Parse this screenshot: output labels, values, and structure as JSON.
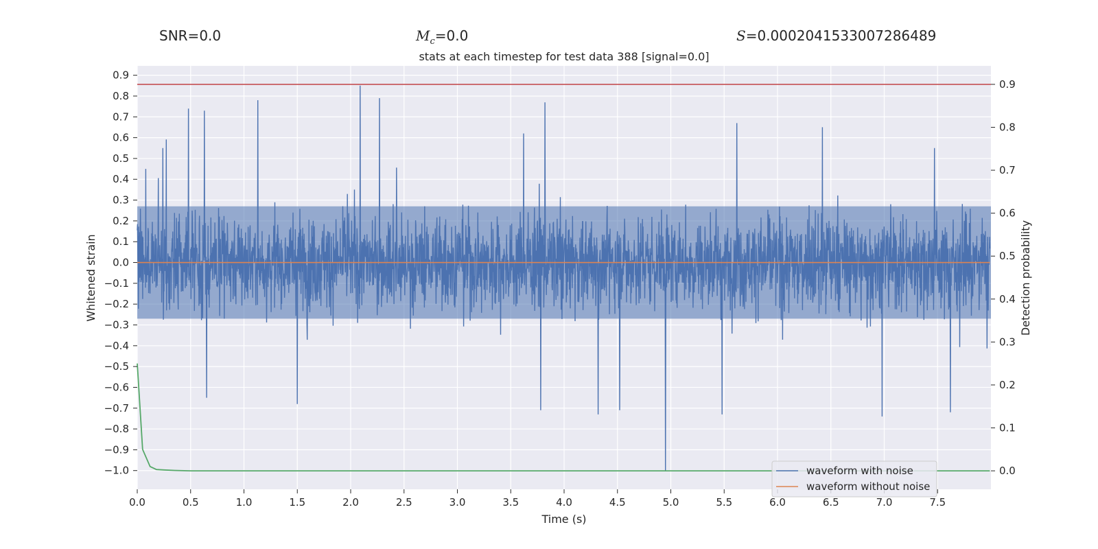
{
  "header": {
    "snr_prefix": "SNR=",
    "snr_value": "0.0",
    "mc_symbol": "M",
    "mc_subscript": "c",
    "mc_equals": "=",
    "mc_value": "0.0",
    "s_symbol": "S",
    "s_equals": "=",
    "s_value": "0.0002041533007286489"
  },
  "chart_data": {
    "type": "line",
    "title": "stats at each timestep for test data 388 [signal=0.0]",
    "xlabel": "Time (s)",
    "ylabel_left": "Whitened strain",
    "ylabel_right": "Detection probability",
    "xlim": [
      0.0,
      8.0
    ],
    "ylim_left": [
      -1.09,
      0.945
    ],
    "ylim_right": [
      -0.043,
      0.943
    ],
    "x_ticks": [
      0.0,
      0.5,
      1.0,
      1.5,
      2.0,
      2.5,
      3.0,
      3.5,
      4.0,
      4.5,
      5.0,
      5.5,
      6.0,
      6.5,
      7.0,
      7.5
    ],
    "x_tick_labels": [
      "0.0",
      "0.5",
      "1.0",
      "1.5",
      "2.0",
      "2.5",
      "3.0",
      "3.5",
      "4.0",
      "4.5",
      "5.0",
      "5.5",
      "6.0",
      "6.5",
      "7.0",
      "7.5"
    ],
    "y_left_ticks": [
      0.9,
      0.8,
      0.7,
      0.6,
      0.5,
      0.4,
      0.3,
      0.2,
      0.1,
      0.0,
      -0.1,
      -0.2,
      -0.3,
      -0.4,
      -0.5,
      -0.6,
      -0.7,
      -0.8,
      -0.9,
      -1.0
    ],
    "y_left_tick_labels": [
      "0.9",
      "0.8",
      "0.7",
      "0.6",
      "0.5",
      "0.4",
      "0.3",
      "0.2",
      "0.1",
      "0.0",
      "−0.1",
      "−0.2",
      "−0.3",
      "−0.4",
      "−0.5",
      "−0.6",
      "−0.7",
      "−0.8",
      "−0.9",
      "−1.0"
    ],
    "y_right_ticks": [
      0.9,
      0.8,
      0.7,
      0.6,
      0.5,
      0.4,
      0.3,
      0.2,
      0.1,
      0.0
    ],
    "y_right_tick_labels": [
      "0.9",
      "0.8",
      "0.7",
      "0.6",
      "0.5",
      "0.4",
      "0.3",
      "0.2",
      "0.1",
      "0.0"
    ],
    "series": [
      {
        "name": "waveform with noise",
        "color": "#4c72b0",
        "axis": "left",
        "description": "dense whitened noise, bulk amplitude about ±0.25, spikes to +0.85 and −1.0",
        "spikes": [
          {
            "x": 0.08,
            "y": 0.45
          },
          {
            "x": 0.24,
            "y": 0.55
          },
          {
            "x": 0.48,
            "y": 0.74
          },
          {
            "x": 0.63,
            "y": 0.73
          },
          {
            "x": 1.13,
            "y": 0.78
          },
          {
            "x": 2.09,
            "y": 0.85
          },
          {
            "x": 2.27,
            "y": 0.79
          },
          {
            "x": 3.82,
            "y": 0.77
          },
          {
            "x": 3.62,
            "y": 0.62
          },
          {
            "x": 5.62,
            "y": 0.67
          },
          {
            "x": 6.42,
            "y": 0.65
          },
          {
            "x": 7.47,
            "y": 0.55
          },
          {
            "x": 4.95,
            "y": -1.0
          },
          {
            "x": 4.32,
            "y": -0.73
          },
          {
            "x": 3.78,
            "y": -0.71
          },
          {
            "x": 4.52,
            "y": -0.71
          },
          {
            "x": 5.48,
            "y": -0.73
          },
          {
            "x": 6.98,
            "y": -0.74
          },
          {
            "x": 7.62,
            "y": -0.72
          },
          {
            "x": 1.5,
            "y": -0.68
          },
          {
            "x": 0.65,
            "y": -0.65
          }
        ]
      },
      {
        "name": "waveform without noise",
        "color": "#dd8452",
        "axis": "left",
        "x": [
          0.0,
          7.99
        ],
        "y": [
          0.0,
          0.0
        ]
      },
      {
        "name": "detection probability",
        "color": "#55a868",
        "axis": "right",
        "x": [
          0.0,
          0.05,
          0.12,
          0.18,
          0.25,
          0.35,
          0.5,
          1.0,
          7.99
        ],
        "y": [
          0.25,
          0.05,
          0.01,
          0.003,
          0.002,
          0.001,
          0.0,
          0.0,
          0.0
        ]
      },
      {
        "name": "threshold",
        "color": "#c44e52",
        "axis": "right",
        "x": [
          0.0,
          8.0
        ],
        "y": [
          0.9,
          0.9
        ]
      }
    ],
    "legend": {
      "position": "lower-right",
      "entries": [
        {
          "label": "waveform with noise",
          "color": "#4c72b0"
        },
        {
          "label": "waveform without noise",
          "color": "#dd8452"
        }
      ]
    },
    "colors": {
      "background": "#eaeaf2",
      "grid": "#ffffff"
    }
  }
}
